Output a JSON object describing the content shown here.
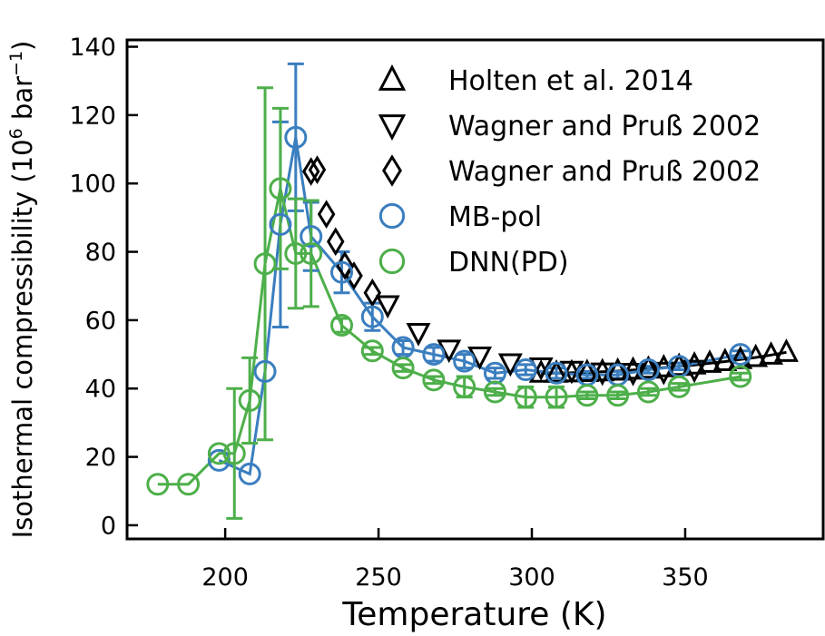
{
  "chart_data": {
    "type": "scatter",
    "xlabel": "Temperature (K)",
    "ylabel_main": "Isothermal compressibility (10",
    "ylabel_exp": "6",
    "ylabel_unit": " bar",
    "ylabel_unit_exp": "−1",
    "ylabel_close": ")",
    "xlim": [
      168,
      395
    ],
    "ylim": [
      -4,
      142
    ],
    "xticks": [
      200,
      250,
      300,
      350
    ],
    "yticks": [
      0,
      20,
      40,
      60,
      80,
      100,
      120,
      140
    ],
    "legend_position": "top-right",
    "series": [
      {
        "name": "Holten et al. 2014",
        "marker": "triangle-up",
        "color": "#000000",
        "line": true,
        "x": [
          303,
          308,
          313,
          318,
          323,
          328,
          333,
          338,
          343,
          348,
          353,
          358,
          363,
          368,
          373,
          378,
          383
        ],
        "y": [
          44.5,
          44.5,
          44.6,
          44.7,
          44.9,
          45.1,
          45.4,
          45.7,
          46.1,
          46.5,
          46.9,
          47.4,
          47.9,
          48.5,
          49.1,
          49.8,
          50.6
        ]
      },
      {
        "name": "Wagner and Pruß 2002",
        "marker": "triangle-down",
        "color": "#000000",
        "line": false,
        "x": [
          253,
          263,
          273,
          283,
          293,
          303,
          313,
          323,
          333,
          343,
          353
        ],
        "y": [
          64.5,
          56.4,
          51.5,
          49.5,
          47.5,
          46.3,
          45.3,
          44.8,
          44.7,
          45.0,
          45.6
        ]
      },
      {
        "name": "Wagner and Pruß 2002",
        "marker": "diamond",
        "color": "#000000",
        "line": false,
        "x": [
          228,
          230,
          233,
          236,
          239,
          242,
          248
        ],
        "y": [
          103.5,
          104,
          91,
          83,
          76,
          73,
          68
        ]
      },
      {
        "name": "MB-pol",
        "marker": "circle",
        "color": "#3a7ebf",
        "line": true,
        "x": [
          198,
          208,
          213,
          218,
          223,
          228,
          238,
          248,
          258,
          268,
          278,
          288,
          298,
          308,
          318,
          328,
          338,
          348,
          368
        ],
        "y": [
          19,
          15,
          45,
          88,
          113.5,
          84.5,
          74,
          61,
          52,
          50,
          48,
          44.5,
          45.5,
          44.5,
          44,
          44,
          45.5,
          46.5,
          50
        ],
        "err": [
          0,
          0,
          0,
          30,
          21.5,
          10,
          6,
          4,
          2,
          2,
          2,
          1.5,
          1.5,
          1.5,
          1,
          1,
          1,
          1,
          1
        ]
      },
      {
        "name": "DNN(PD)",
        "marker": "circle",
        "color": "#4daf4a",
        "line": true,
        "x": [
          178,
          188,
          198,
          203,
          208,
          213,
          218,
          223,
          228,
          238,
          248,
          258,
          268,
          278,
          288,
          298,
          308,
          318,
          328,
          338,
          348,
          368
        ],
        "y": [
          12,
          12,
          21,
          21,
          36.5,
          76.5,
          98.5,
          79.5,
          79.5,
          58.5,
          51,
          46,
          42.5,
          40.5,
          39,
          37.5,
          37.5,
          38,
          38,
          39,
          40.5,
          43.5
        ],
        "err": [
          0,
          0,
          0,
          19,
          12.5,
          51.5,
          23.5,
          16,
          15.5,
          2,
          1,
          1,
          1,
          3,
          1,
          3,
          3,
          1,
          1,
          1,
          1,
          1
        ]
      }
    ]
  }
}
